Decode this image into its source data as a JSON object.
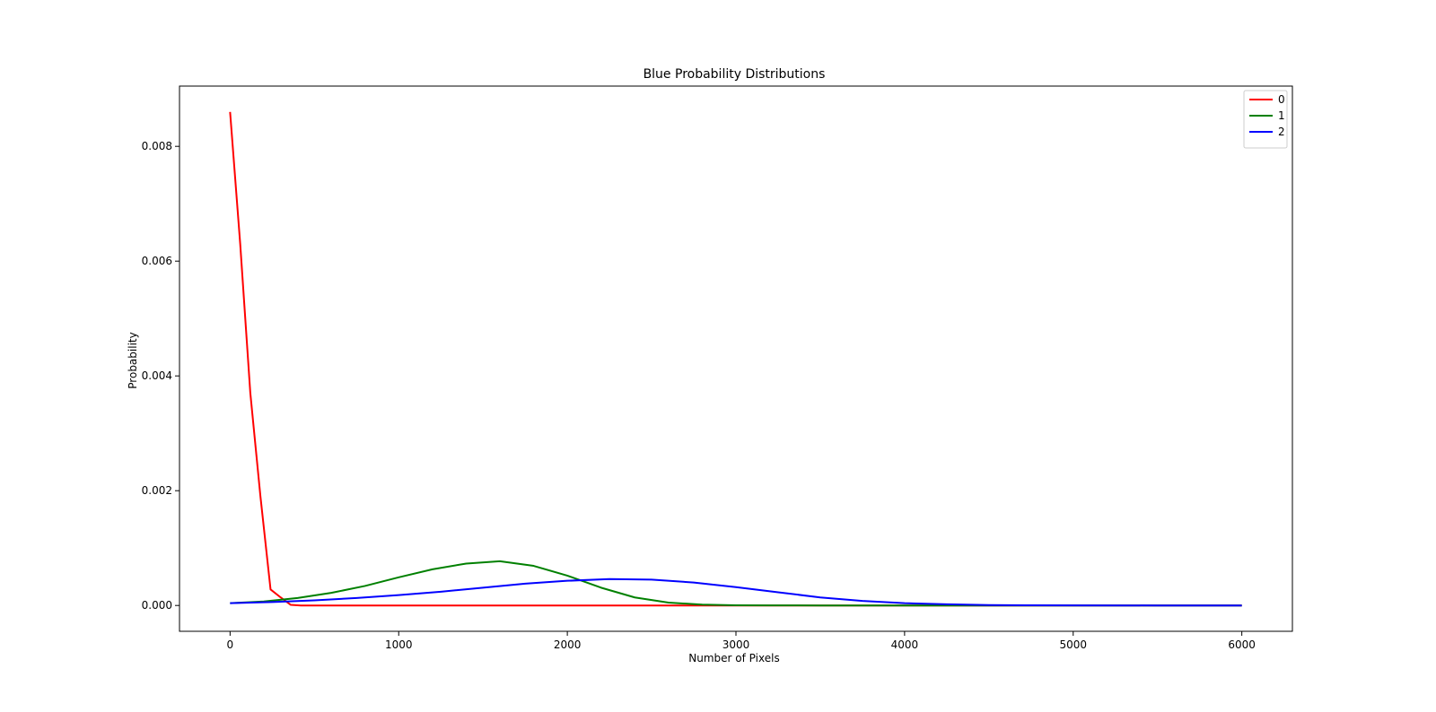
{
  "chart_data": {
    "type": "line",
    "title": "Blue Probability Distributions",
    "xlabel": "Number of Pixels",
    "ylabel": "Probability",
    "xlim": [
      -300,
      6300
    ],
    "ylim": [
      -0.00045,
      0.00905
    ],
    "xticks": [
      0,
      1000,
      2000,
      3000,
      4000,
      5000,
      6000
    ],
    "xtick_labels": [
      "0",
      "1000",
      "2000",
      "3000",
      "4000",
      "5000",
      "6000"
    ],
    "yticks": [
      0,
      0.002,
      0.004,
      0.006,
      0.008
    ],
    "ytick_labels": [
      "0.000",
      "0.002",
      "0.004",
      "0.006",
      "0.008"
    ],
    "grid": false,
    "legend": "top-right",
    "series": [
      {
        "name": "0",
        "color": "#ff0000",
        "x": [
          0,
          60,
          120,
          180,
          240,
          300,
          360,
          420,
          500,
          1000,
          2000,
          3000,
          4000,
          5000,
          6000
        ],
        "y": [
          0.0086,
          0.0063,
          0.0037,
          0.0019,
          0.00028,
          0.00014,
          1e-05,
          0,
          0,
          0,
          0,
          0,
          0,
          0,
          0
        ]
      },
      {
        "name": "1",
        "color": "#008000",
        "x": [
          0,
          200,
          400,
          600,
          800,
          1000,
          1200,
          1400,
          1600,
          1800,
          2000,
          2200,
          2400,
          2600,
          2800,
          3000,
          3200,
          3500,
          4000,
          5000,
          6000
        ],
        "y": [
          4e-05,
          7e-05,
          0.00013,
          0.00022,
          0.00034,
          0.00049,
          0.00063,
          0.00073,
          0.00077,
          0.00069,
          0.00052,
          0.00031,
          0.00014,
          5e-05,
          1.5e-05,
          4e-06,
          1e-06,
          0,
          0,
          0,
          0
        ]
      },
      {
        "name": "2",
        "color": "#0000ff",
        "x": [
          0,
          250,
          500,
          750,
          1000,
          1250,
          1500,
          1750,
          2000,
          2250,
          2500,
          2750,
          3000,
          3250,
          3500,
          3750,
          4000,
          4250,
          4500,
          4750,
          5000,
          5500,
          6000
        ],
        "y": [
          4e-05,
          6e-05,
          9e-05,
          0.00013,
          0.00018,
          0.00024,
          0.00031,
          0.00038,
          0.00043,
          0.00046,
          0.00045,
          0.0004,
          0.00032,
          0.00023,
          0.00014,
          8e-05,
          4e-05,
          2e-05,
          8e-06,
          3e-06,
          1e-06,
          0,
          0
        ]
      }
    ]
  }
}
